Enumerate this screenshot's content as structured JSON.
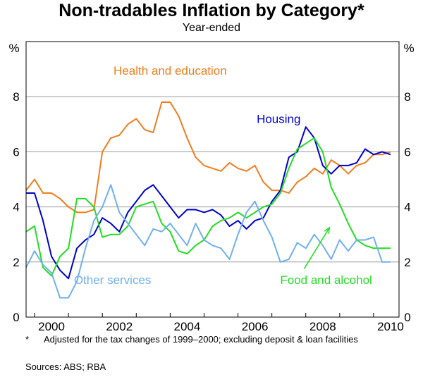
{
  "chart_data": {
    "type": "line",
    "title": "Non-tradables Inflation by Category*",
    "subtitle": "Year-ended",
    "y_unit_left": "%",
    "y_unit_right": "%",
    "ylim": [
      0,
      10
    ],
    "yticks": [
      0,
      2,
      4,
      6,
      8
    ],
    "xlim": [
      1999.75,
      2010.75
    ],
    "xticks": [
      2000,
      2002,
      2004,
      2006,
      2008,
      2010
    ],
    "grid": true,
    "series": [
      {
        "name": "Health and education",
        "color": "#F07D1E",
        "label_pos": [
          2004,
          8.8
        ],
        "x": [
          1999.75,
          2000.0,
          2000.25,
          2000.5,
          2000.75,
          2001.0,
          2001.25,
          2001.5,
          2001.75,
          2002.0,
          2002.25,
          2002.5,
          2002.75,
          2003.0,
          2003.25,
          2003.5,
          2003.75,
          2004.0,
          2004.25,
          2004.5,
          2004.75,
          2005.0,
          2005.25,
          2005.5,
          2005.75,
          2006.0,
          2006.25,
          2006.5,
          2006.75,
          2007.0,
          2007.25,
          2007.5,
          2007.75,
          2008.0,
          2008.25,
          2008.5,
          2008.75,
          2009.0,
          2009.25,
          2009.5,
          2009.75,
          2010.0,
          2010.25,
          2010.5
        ],
        "values": [
          4.6,
          5.0,
          4.5,
          4.5,
          4.3,
          4.0,
          3.8,
          3.8,
          3.9,
          6.0,
          6.5,
          6.6,
          7.0,
          7.2,
          6.8,
          6.7,
          7.8,
          7.8,
          7.3,
          6.5,
          5.8,
          5.5,
          5.4,
          5.3,
          5.6,
          5.4,
          5.3,
          5.5,
          4.9,
          4.6,
          4.6,
          4.5,
          4.9,
          5.1,
          5.4,
          5.2,
          5.7,
          5.5,
          5.2,
          5.5,
          5.6,
          5.9,
          5.9,
          6.0
        ]
      },
      {
        "name": "Housing",
        "color": "#0000CC",
        "label_pos": [
          2007.2,
          7.05
        ],
        "x": [
          1999.75,
          2000.0,
          2000.25,
          2000.5,
          2000.75,
          2001.0,
          2001.25,
          2001.5,
          2001.75,
          2002.0,
          2002.25,
          2002.5,
          2002.75,
          2003.0,
          2003.25,
          2003.5,
          2003.75,
          2004.0,
          2004.25,
          2004.5,
          2004.75,
          2005.0,
          2005.25,
          2005.5,
          2005.75,
          2006.0,
          2006.25,
          2006.5,
          2006.75,
          2007.0,
          2007.25,
          2007.5,
          2007.75,
          2008.0,
          2008.25,
          2008.5,
          2008.75,
          2009.0,
          2009.25,
          2009.5,
          2009.75,
          2010.0,
          2010.25,
          2010.5
        ],
        "values": [
          4.5,
          4.5,
          3.5,
          2.2,
          1.7,
          1.4,
          2.5,
          2.8,
          3.0,
          3.6,
          3.4,
          3.1,
          3.8,
          4.2,
          4.6,
          4.8,
          4.4,
          4.0,
          3.6,
          3.9,
          3.9,
          3.8,
          3.9,
          3.7,
          3.3,
          3.5,
          3.2,
          3.5,
          3.6,
          4.2,
          4.6,
          5.8,
          6.0,
          6.9,
          6.5,
          5.5,
          5.2,
          5.5,
          5.5,
          5.6,
          6.1,
          5.9,
          6.0,
          5.9
        ]
      },
      {
        "name": "Food and alcohol",
        "color": "#22DD22",
        "label_pos": [
          2008.6,
          1.2
        ],
        "x": [
          1999.75,
          2000.0,
          2000.25,
          2000.5,
          2000.75,
          2001.0,
          2001.25,
          2001.5,
          2001.75,
          2002.0,
          2002.25,
          2002.5,
          2002.75,
          2003.0,
          2003.25,
          2003.5,
          2003.75,
          2004.0,
          2004.25,
          2004.5,
          2004.75,
          2005.0,
          2005.25,
          2005.5,
          2005.75,
          2006.0,
          2006.25,
          2006.5,
          2006.75,
          2007.0,
          2007.25,
          2007.5,
          2007.75,
          2008.0,
          2008.25,
          2008.5,
          2008.75,
          2009.0,
          2009.25,
          2009.5,
          2009.75,
          2010.0,
          2010.25,
          2010.5
        ],
        "values": [
          3.1,
          3.3,
          1.8,
          1.5,
          2.2,
          2.5,
          4.3,
          4.3,
          4.0,
          2.9,
          3.0,
          3.0,
          3.3,
          4.0,
          4.1,
          4.2,
          3.4,
          3.1,
          2.4,
          2.3,
          2.6,
          2.8,
          3.3,
          3.5,
          3.6,
          3.8,
          3.6,
          3.8,
          4.0,
          4.1,
          4.5,
          5.4,
          6.1,
          6.3,
          6.5,
          6.0,
          4.7,
          4.1,
          3.4,
          2.8,
          2.6,
          2.5,
          2.5,
          2.5
        ]
      },
      {
        "name": "Other services",
        "color": "#70B0F0",
        "label_pos": [
          2002.3,
          1.2
        ],
        "x": [
          1999.75,
          2000.0,
          2000.25,
          2000.5,
          2000.75,
          2001.0,
          2001.25,
          2001.5,
          2001.75,
          2002.0,
          2002.25,
          2002.5,
          2002.75,
          2003.0,
          2003.25,
          2003.5,
          2003.75,
          2004.0,
          2004.25,
          2004.5,
          2004.75,
          2005.0,
          2005.25,
          2005.5,
          2005.75,
          2006.0,
          2006.25,
          2006.5,
          2006.75,
          2007.0,
          2007.25,
          2007.5,
          2007.75,
          2008.0,
          2008.25,
          2008.5,
          2008.75,
          2009.0,
          2009.25,
          2009.5,
          2009.75,
          2010.0,
          2010.25,
          2010.5
        ],
        "values": [
          1.8,
          2.4,
          1.9,
          1.6,
          0.7,
          0.7,
          1.3,
          2.5,
          3.5,
          4.0,
          4.8,
          3.8,
          3.4,
          3.0,
          2.6,
          3.2,
          3.1,
          3.4,
          3.0,
          2.6,
          3.4,
          2.8,
          2.6,
          2.5,
          2.1,
          3.0,
          3.8,
          4.2,
          3.5,
          2.9,
          2.0,
          2.1,
          2.7,
          2.5,
          3.0,
          2.6,
          2.1,
          2.8,
          2.4,
          2.8,
          2.8,
          2.9,
          2.0,
          2.0
        ]
      }
    ],
    "annotation_arrow": {
      "from": [
        2007.95,
        1.75
      ],
      "to": [
        2008.7,
        3.25
      ],
      "color": "#22DD22"
    }
  },
  "footnote_mark": "*",
  "footnote": "Adjusted for the tax changes of 1999–2000; excluding deposit & loan facilities",
  "sources": "Sources: ABS; RBA"
}
